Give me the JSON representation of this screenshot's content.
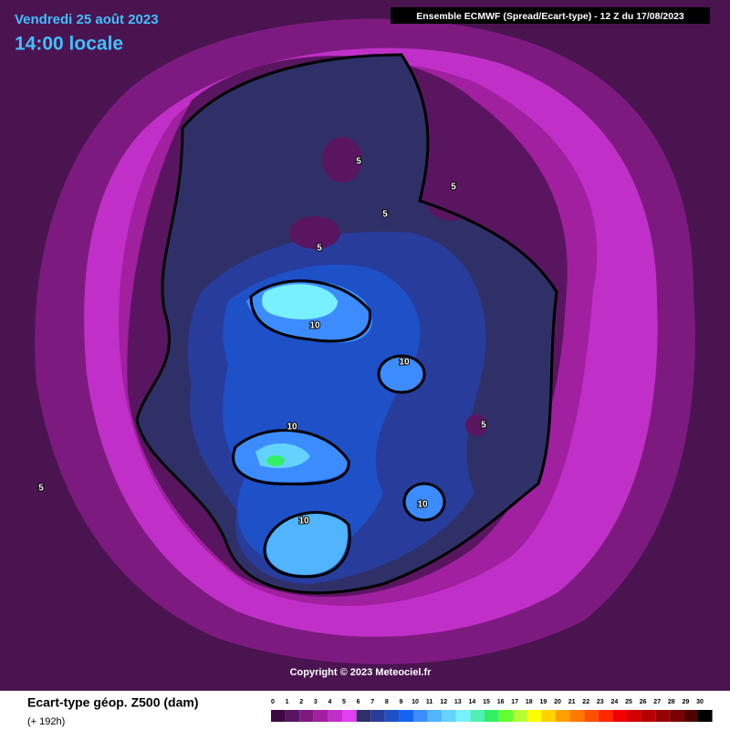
{
  "header": {
    "date": "Vendredi 25 août 2023",
    "time": "14:00 locale",
    "model": "Ensemble ECMWF  (Spread/Ecart-type) - 12 Z du 17/08/2023"
  },
  "copyright": "Copyright © 2023 Meteociel.fr",
  "contour_labels": [
    5,
    5,
    5,
    5,
    5,
    5,
    10,
    10,
    10,
    10,
    10
  ],
  "legend": {
    "title": "Ecart-type géop. Z500 (dam)",
    "subtitle": "(+ 192h)",
    "scale": [
      0,
      1,
      2,
      3,
      4,
      5,
      6,
      7,
      8,
      9,
      10,
      11,
      12,
      13,
      14,
      15,
      16,
      17,
      18,
      19,
      20,
      21,
      22,
      23,
      24,
      25,
      26,
      27,
      28,
      29,
      30
    ],
    "colors": [
      "#3c0a40",
      "#5a1560",
      "#7d1a80",
      "#a020a0",
      "#c030c8",
      "#e040f0",
      "#303068",
      "#283c9c",
      "#1e50c8",
      "#1464f0",
      "#3c8cff",
      "#50b4ff",
      "#64d2ff",
      "#78f0ff",
      "#50f0b4",
      "#32f064",
      "#64ff32",
      "#b4ff32",
      "#ffff00",
      "#ffd200",
      "#ffa000",
      "#ff7800",
      "#ff5000",
      "#ff2800",
      "#f00000",
      "#d20000",
      "#b40000",
      "#960000",
      "#780000",
      "#500000",
      "#000000"
    ]
  }
}
